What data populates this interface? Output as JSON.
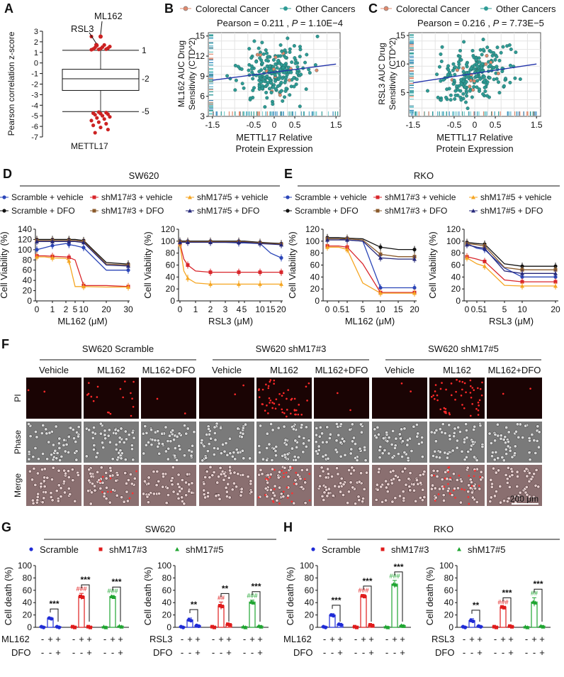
{
  "panelA": {
    "letter": "A",
    "ylabel": "Pearson correlation z-score",
    "xlabel": "METTL17",
    "ticks": [
      3,
      2,
      1,
      0,
      -1,
      -2,
      -3,
      -4,
      -5,
      -6,
      -7
    ],
    "line_labels": [
      "1",
      "-2",
      "-5"
    ],
    "point_labels": [
      "ML162",
      "RSL3"
    ]
  },
  "panelB": {
    "letter": "B",
    "legend": [
      "Colorectal Cancer",
      "Other Cancers"
    ],
    "stat_pre": "Pearson = 0.211 ,",
    "stat_p": "P",
    "stat_post": "= 1.10E−4",
    "ylabel1": "ML162 AUC Drug",
    "ylabel2": "Sensitivity (CTD^2)",
    "xlabel1": "METTL17 Relative",
    "xlabel2": "Protein Expression",
    "yticks": [
      3,
      6,
      9,
      12,
      15
    ],
    "xticks": [
      -1.5,
      -0.5,
      0,
      0.5,
      1.5
    ]
  },
  "panelC": {
    "letter": "C",
    "legend": [
      "Colorectal Cancer",
      "Other Cancers"
    ],
    "stat_pre": "Pearson = 0.216 ,",
    "stat_p": "P",
    "stat_post": "= 7.73E−5",
    "ylabel1": "RSL3 AUC Drug",
    "ylabel2": "Sensitivity (CTD^2)",
    "xlabel1": "METTL17 Relative",
    "xlabel2": "Protein Expression",
    "yticks": [
      5,
      10,
      15
    ],
    "xticks": [
      -1.5,
      -0.5,
      0,
      0.5,
      1.5
    ]
  },
  "panelD": {
    "letter": "D",
    "cell_line": "SW620",
    "legend": [
      "Scramble + vehicle",
      "shM17#3 + vehicle",
      "shM17#5 + vehicle",
      "Scramble + DFO",
      "shM17#3 + DFO",
      "shM17#5 + DFO"
    ],
    "ylabel": "Cell Viability (%)",
    "ml162": {
      "xlabel": "ML162 (μM)",
      "xticks": [
        "0",
        "1",
        "2",
        "5",
        "10",
        "20",
        "30"
      ],
      "yticks": [
        0,
        20,
        40,
        60,
        80,
        100,
        120,
        140
      ]
    },
    "rsl3": {
      "xlabel": "RSL3 (μM)",
      "xticks": [
        "0",
        "1",
        "2",
        "3",
        "4",
        "5",
        "10",
        "15",
        "20"
      ],
      "yticks": [
        0,
        20,
        40,
        60,
        80,
        100,
        120
      ]
    }
  },
  "panelE": {
    "letter": "E",
    "cell_line": "RKO",
    "legend": [
      "Scramble + vehicle",
      "shM17#3 + vehicle",
      "shM17#5 + vehicle",
      "Scramble + DFO",
      "shM17#3 + DFO",
      "shM17#5 + DFO"
    ],
    "ylabel": "Cell Viability (%)",
    "ml162": {
      "xlabel": "ML162 (μM)",
      "xticks": [
        "0",
        "0.5",
        "1",
        "5",
        "10",
        "15",
        "20"
      ],
      "yticks": [
        0,
        20,
        40,
        60,
        80,
        100,
        120
      ]
    },
    "rsl3": {
      "xlabel": "RSL3 (μM)",
      "xticks": [
        "0",
        "0.5",
        "1",
        "5",
        "10",
        "20"
      ],
      "yticks": [
        0,
        20,
        40,
        60,
        80,
        100,
        120
      ]
    }
  },
  "panelF": {
    "letter": "F",
    "groups": [
      "SW620 Scramble",
      "SW620 shM17#3",
      "SW620 shM17#5"
    ],
    "columns": [
      "Vehicle",
      "ML162",
      "ML162+DFO",
      "Vehicle",
      "ML162",
      "ML162+DFO",
      "Vehicle",
      "ML162",
      "ML162+DFO"
    ],
    "rows": [
      "PI",
      "Phase",
      "Merge"
    ],
    "scale_bar": "200 μm"
  },
  "panelG": {
    "letter": "G",
    "cell_line": "SW620",
    "legend": [
      "Scramble",
      "shM17#3",
      "shM17#5"
    ],
    "ylabel": "Cell death (%)",
    "row_ml162": "ML162",
    "row_rsl3": "RSL3",
    "row_dfo": "DFO"
  },
  "panelH": {
    "letter": "H",
    "cell_line": "RKO",
    "legend": [
      "Scramble",
      "shM17#3",
      "shM17#5"
    ],
    "ylabel": "Cell death (%)",
    "row_ml162": "ML162",
    "row_rsl3": "RSL3",
    "row_dfo": "DFO"
  },
  "chart_data": [
    {
      "id": "A",
      "type": "box",
      "title": "",
      "xlabel": "METTL17",
      "ylabel": "Pearson correlation z-score",
      "ylim": [
        -7,
        3
      ],
      "box": {
        "q1": -2.6,
        "median": -1.5,
        "q3": -0.6,
        "upper_line": 1.2,
        "lower_line": -4.6
      },
      "annotated": [
        {
          "label": "ML162",
          "value": 2.5
        },
        {
          "label": "RSL3",
          "value": 1.7
        }
      ],
      "outliers_high": [
        1.25,
        1.28,
        1.3,
        1.32,
        1.35,
        1.4,
        1.45,
        1.5,
        1.55,
        1.65,
        1.7,
        2.5
      ],
      "outliers_low": [
        -4.65,
        -4.7,
        -4.75,
        -4.8,
        -4.85,
        -4.9,
        -5.0,
        -5.1,
        -5.2,
        -5.3,
        -5.45,
        -5.6,
        -5.75,
        -5.9,
        -6.1,
        -6.3,
        -6.6
      ]
    },
    {
      "id": "B",
      "type": "scatter",
      "xlabel": "METTL17 Relative Protein Expression",
      "ylabel": "ML162 AUC Drug Sensitivity (CTD^2)",
      "xlim": [
        -1.6,
        1.6
      ],
      "ylim": [
        3,
        15.5
      ],
      "pearson": 0.211,
      "p": "1.10E-4",
      "regression": {
        "x": [
          -1.5,
          1.5
        ],
        "y": [
          8.4,
          10.8
        ]
      },
      "series": [
        "Colorectal Cancer",
        "Other Cancers"
      ]
    },
    {
      "id": "C",
      "type": "scatter",
      "xlabel": "METTL17 Relative Protein Expression",
      "ylabel": "RSL3 AUC Drug Sensitivity (CTD^2)",
      "xlim": [
        -1.6,
        1.6
      ],
      "ylim": [
        0.8,
        15.5
      ],
      "pearson": 0.216,
      "p": "7.73E-5",
      "regression": {
        "x": [
          -1.5,
          1.5
        ],
        "y": [
          6.7,
          10.0
        ]
      },
      "series": [
        "Colorectal Cancer",
        "Other Cancers"
      ]
    },
    {
      "id": "D-ML162",
      "type": "line",
      "x": [
        0,
        0.5,
        1,
        2,
        3,
        5,
        10,
        20,
        30
      ],
      "series": [
        {
          "name": "Scramble + vehicle",
          "values": [
            100,
            104,
            108,
            112,
            110,
            108,
            104,
            60,
            60
          ]
        },
        {
          "name": "shM17#3 + vehicle",
          "values": [
            88,
            88,
            87,
            86,
            85,
            80,
            30,
            30,
            28
          ]
        },
        {
          "name": "shM17#5 + vehicle",
          "values": [
            86,
            86,
            84,
            83,
            78,
            28,
            28,
            27,
            27
          ]
        },
        {
          "name": "Scramble + DFO",
          "values": [
            120,
            120,
            120,
            120,
            120,
            120,
            118,
            75,
            72
          ]
        },
        {
          "name": "shM17#3 + DFO",
          "values": [
            118,
            118,
            118,
            118,
            118,
            118,
            116,
            72,
            70
          ]
        },
        {
          "name": "shM17#5 + DFO",
          "values": [
            116,
            116,
            116,
            116,
            116,
            116,
            114,
            70,
            68
          ]
        }
      ]
    },
    {
      "id": "D-RSL3",
      "type": "line",
      "x": [
        0,
        0.25,
        0.5,
        1,
        2,
        3,
        4,
        5,
        10,
        15,
        20
      ],
      "series": [
        {
          "name": "Scramble + vehicle",
          "values": [
            100,
            100,
            99,
            99,
            98,
            98,
            97,
            97,
            96,
            80,
            72
          ]
        },
        {
          "name": "shM17#3 + vehicle",
          "values": [
            96,
            70,
            60,
            50,
            48,
            48,
            48,
            48,
            48,
            48,
            48
          ]
        },
        {
          "name": "shM17#5 + vehicle",
          "values": [
            94,
            50,
            38,
            30,
            28,
            28,
            28,
            28,
            28,
            28,
            28
          ]
        },
        {
          "name": "Scramble + DFO",
          "values": [
            100,
            100,
            100,
            100,
            100,
            100,
            100,
            100,
            98,
            97,
            96
          ]
        },
        {
          "name": "shM17#3 + DFO",
          "values": [
            99,
            99,
            99,
            99,
            99,
            99,
            99,
            99,
            97,
            96,
            95
          ]
        },
        {
          "name": "shM17#5 + DFO",
          "values": [
            98,
            98,
            98,
            98,
            98,
            98,
            98,
            98,
            96,
            95,
            94
          ]
        }
      ]
    },
    {
      "id": "E-ML162",
      "type": "line",
      "x": [
        0,
        0.5,
        1,
        5,
        10,
        15,
        20
      ],
      "series": [
        {
          "name": "Scramble + vehicle",
          "values": [
            104,
            104,
            102,
            100,
            22,
            22,
            22
          ]
        },
        {
          "name": "shM17#3 + vehicle",
          "values": [
            92,
            92,
            90,
            62,
            14,
            14,
            14
          ]
        },
        {
          "name": "shM17#5 + vehicle",
          "values": [
            90,
            90,
            86,
            30,
            13,
            13,
            13
          ]
        },
        {
          "name": "Scramble + DFO",
          "values": [
            106,
            106,
            105,
            104,
            90,
            86,
            86
          ]
        },
        {
          "name": "shM17#3 + DFO",
          "values": [
            104,
            104,
            104,
            102,
            78,
            74,
            74
          ]
        },
        {
          "name": "shM17#5 + DFO",
          "values": [
            102,
            102,
            102,
            100,
            72,
            70,
            70
          ]
        }
      ]
    },
    {
      "id": "E-RSL3",
      "type": "line",
      "x": [
        0,
        0.5,
        1,
        5,
        10,
        20
      ],
      "series": [
        {
          "name": "Scramble + vehicle",
          "values": [
            96,
            88,
            86,
            55,
            40,
            40
          ]
        },
        {
          "name": "shM17#3 + vehicle",
          "values": [
            74,
            70,
            66,
            35,
            32,
            32
          ]
        },
        {
          "name": "shM17#5 + vehicle",
          "values": [
            72,
            62,
            58,
            26,
            25,
            25
          ]
        },
        {
          "name": "Scramble + DFO",
          "values": [
            98,
            96,
            95,
            62,
            58,
            58
          ]
        },
        {
          "name": "shM17#3 + DFO",
          "values": [
            96,
            94,
            92,
            56,
            52,
            52
          ]
        },
        {
          "name": "shM17#5 + DFO",
          "values": [
            94,
            90,
            88,
            50,
            46,
            46
          ]
        }
      ]
    },
    {
      "id": "G-ML162",
      "type": "bar",
      "ylim": [
        0,
        100
      ],
      "yticks": [
        0,
        20,
        40,
        60,
        80,
        100
      ],
      "groups": [
        "Scramble",
        "shM17#3",
        "shM17#5"
      ],
      "values": [
        [
          1,
          15,
          1
        ],
        [
          1,
          50,
          1
        ],
        [
          1,
          50,
          2
        ]
      ],
      "errors": [
        [
          0.5,
          1,
          0.5
        ],
        [
          0.5,
          5,
          0.5
        ],
        [
          0.5,
          1.5,
          0.5
        ]
      ],
      "ml162": [
        "-",
        "+",
        "+"
      ],
      "dfo": [
        "-",
        "-",
        "+"
      ],
      "hash": [
        "",
        "###",
        "###"
      ],
      "stars": [
        "***",
        "***",
        "***"
      ]
    },
    {
      "id": "G-RSL3",
      "type": "bar",
      "ylim": [
        0,
        100
      ],
      "yticks": [
        0,
        20,
        40,
        60,
        80,
        100
      ],
      "groups": [
        "Scramble",
        "shM17#3",
        "shM17#5"
      ],
      "values": [
        [
          1,
          12,
          3
        ],
        [
          1,
          35,
          5
        ],
        [
          1,
          41,
          2
        ]
      ],
      "errors": [
        [
          0.5,
          3,
          1
        ],
        [
          0.5,
          6,
          1
        ],
        [
          0.5,
          3,
          1
        ]
      ],
      "rsl3": [
        "-",
        "+",
        "+"
      ],
      "dfo": [
        "-",
        "-",
        "+"
      ],
      "hash": [
        "",
        "##",
        "###"
      ],
      "stars": [
        "**",
        "**",
        "***"
      ]
    },
    {
      "id": "H-ML162",
      "type": "bar",
      "ylim": [
        0,
        100
      ],
      "yticks": [
        0,
        20,
        40,
        60,
        80,
        100
      ],
      "groups": [
        "Scramble",
        "shM17#3",
        "shM17#5"
      ],
      "values": [
        [
          1,
          20,
          5
        ],
        [
          1,
          51,
          4
        ],
        [
          1,
          70,
          3
        ]
      ],
      "errors": [
        [
          0.5,
          2,
          1.5
        ],
        [
          0.5,
          2,
          1
        ],
        [
          0.5,
          6,
          1
        ]
      ],
      "ml162": [
        "-",
        "+",
        "+"
      ],
      "dfo": [
        "-",
        "-",
        "+"
      ],
      "hash": [
        "",
        "###",
        "###"
      ],
      "stars": [
        "***",
        "***",
        "***"
      ]
    },
    {
      "id": "H-RSL3",
      "type": "bar",
      "ylim": [
        0,
        100
      ],
      "yticks": [
        0,
        20,
        40,
        60,
        80,
        100
      ],
      "groups": [
        "Scramble",
        "shM17#3",
        "shM17#5"
      ],
      "values": [
        [
          1,
          11,
          2
        ],
        [
          1,
          33,
          2
        ],
        [
          1,
          41,
          2
        ]
      ],
      "errors": [
        [
          0.5,
          3,
          1
        ],
        [
          0.5,
          1,
          1
        ],
        [
          0.5,
          7,
          1
        ]
      ],
      "rsl3": [
        "-",
        "+",
        "+"
      ],
      "dfo": [
        "-",
        "-",
        "+"
      ],
      "hash": [
        "",
        "###",
        "##"
      ],
      "stars": [
        "**",
        "***",
        "***"
      ]
    }
  ]
}
